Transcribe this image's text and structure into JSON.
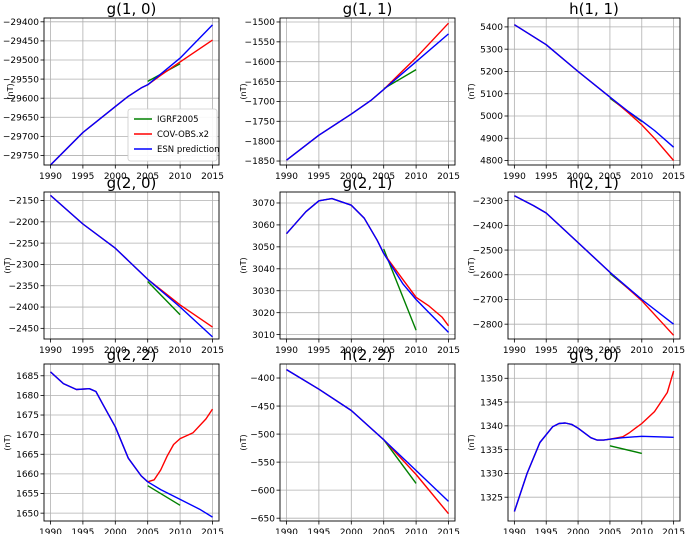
{
  "chart_data": [
    {
      "type": "line",
      "title": "g(1, 0)",
      "ylabel": "(nT)",
      "xlim": [
        1989,
        2016
      ],
      "ylim": [
        -29775,
        -29390
      ],
      "xticks": [
        1990,
        1995,
        2000,
        2005,
        2010,
        2015
      ],
      "yticks": [
        -29750,
        -29700,
        -29650,
        -29600,
        -29550,
        -29500,
        -29450,
        -29400
      ],
      "grid": true,
      "legend": "lower-right",
      "series": [
        {
          "name": "IGRF2005",
          "color": "#008000",
          "x": [
            2005,
            2010
          ],
          "y": [
            -29556,
            -29510
          ]
        },
        {
          "name": "COV-OBS.x2",
          "color": "#ff0000",
          "x": [
            1990,
            1995,
            2000,
            2002,
            2004,
            2005,
            2007,
            2010,
            2015
          ],
          "y": [
            -29775,
            -29690,
            -29622,
            -29595,
            -29573,
            -29565,
            -29540,
            -29505,
            -29448
          ]
        },
        {
          "name": "ESN prediction",
          "color": "#0000ff",
          "x": [
            1990,
            1995,
            2000,
            2002,
            2004,
            2005,
            2007,
            2010,
            2015
          ],
          "y": [
            -29775,
            -29690,
            -29622,
            -29595,
            -29573,
            -29565,
            -29537,
            -29495,
            -29408
          ]
        }
      ]
    },
    {
      "type": "line",
      "title": "g(1, 1)",
      "ylabel": "(nT)",
      "xlim": [
        1989,
        2016
      ],
      "ylim": [
        -1860,
        -1490
      ],
      "xticks": [
        1990,
        1995,
        2000,
        2005,
        2010,
        2015
      ],
      "yticks": [
        -1850,
        -1800,
        -1750,
        -1700,
        -1650,
        -1600,
        -1550,
        -1500
      ],
      "grid": true,
      "series": [
        {
          "name": "IGRF2005",
          "color": "#008000",
          "x": [
            2005,
            2010
          ],
          "y": [
            -1668,
            -1620
          ]
        },
        {
          "name": "COV-OBS.x2",
          "color": "#ff0000",
          "x": [
            1990,
            1995,
            2000,
            2003,
            2005,
            2008,
            2010,
            2015
          ],
          "y": [
            -1848,
            -1785,
            -1732,
            -1698,
            -1670,
            -1622,
            -1590,
            -1503
          ]
        },
        {
          "name": "ESN prediction",
          "color": "#0000ff",
          "x": [
            1990,
            1995,
            2000,
            2003,
            2005,
            2008,
            2010,
            2015
          ],
          "y": [
            -1848,
            -1785,
            -1732,
            -1698,
            -1670,
            -1628,
            -1600,
            -1530
          ]
        }
      ]
    },
    {
      "type": "line",
      "title": "h(1, 1)",
      "ylabel": "(nT)",
      "xlim": [
        1989,
        2016
      ],
      "ylim": [
        4780,
        5440
      ],
      "xticks": [
        1990,
        1995,
        2000,
        2005,
        2010,
        2015
      ],
      "yticks": [
        4800,
        4900,
        5000,
        5100,
        5200,
        5300,
        5400
      ],
      "grid": true,
      "series": [
        {
          "name": "IGRF2005",
          "color": "#008000",
          "x": [
            2005,
            2010
          ],
          "y": [
            5080,
            4975
          ]
        },
        {
          "name": "COV-OBS.x2",
          "color": "#ff0000",
          "x": [
            1990,
            1995,
            2000,
            2005,
            2008,
            2010,
            2012,
            2015
          ],
          "y": [
            5410,
            5320,
            5200,
            5085,
            5012,
            4960,
            4900,
            4800
          ]
        },
        {
          "name": "ESN prediction",
          "color": "#0000ff",
          "x": [
            1990,
            1995,
            2000,
            2005,
            2008,
            2010,
            2012,
            2015
          ],
          "y": [
            5410,
            5320,
            5200,
            5085,
            5018,
            4978,
            4935,
            4860
          ]
        }
      ]
    },
    {
      "type": "line",
      "title": "g(2, 0)",
      "ylabel": "(nT)",
      "xlim": [
        1989,
        2016
      ],
      "ylim": [
        -2475,
        -2130
      ],
      "xticks": [
        1990,
        1995,
        2000,
        2005,
        2010,
        2015
      ],
      "yticks": [
        -2150,
        -2200,
        -2250,
        -2300,
        -2350,
        -2400,
        -2450
      ],
      "grid": true,
      "series": [
        {
          "name": "IGRF2005",
          "color": "#008000",
          "x": [
            2005,
            2010
          ],
          "y": [
            -2340,
            -2418
          ]
        },
        {
          "name": "COV-OBS.x2",
          "color": "#ff0000",
          "x": [
            1990,
            1995,
            2000,
            2005,
            2010,
            2015
          ],
          "y": [
            -2138,
            -2205,
            -2262,
            -2335,
            -2395,
            -2447
          ]
        },
        {
          "name": "ESN prediction",
          "color": "#0000ff",
          "x": [
            1990,
            1995,
            2000,
            2005,
            2010,
            2015
          ],
          "y": [
            -2138,
            -2205,
            -2262,
            -2335,
            -2400,
            -2470
          ]
        }
      ]
    },
    {
      "type": "line",
      "title": "g(2, 1)",
      "ylabel": "(nT)",
      "xlim": [
        1989,
        2016
      ],
      "ylim": [
        3008,
        3075
      ],
      "xticks": [
        1990,
        1995,
        2000,
        2005,
        2010,
        2015
      ],
      "yticks": [
        3010,
        3020,
        3030,
        3040,
        3050,
        3060,
        3070
      ],
      "grid": true,
      "series": [
        {
          "name": "IGRF2005",
          "color": "#008000",
          "x": [
            2005,
            2010
          ],
          "y": [
            3049,
            3012
          ]
        },
        {
          "name": "COV-OBS.x2",
          "color": "#ff0000",
          "x": [
            1990,
            1993,
            1995,
            1997,
            2000,
            2002,
            2004,
            2005,
            2008,
            2010,
            2012,
            2014,
            2015
          ],
          "y": [
            3056,
            3066,
            3071,
            3072,
            3069,
            3063,
            3053,
            3047,
            3035,
            3027,
            3023,
            3018,
            3014
          ]
        },
        {
          "name": "ESN prediction",
          "color": "#0000ff",
          "x": [
            1990,
            1993,
            1995,
            1997,
            2000,
            2002,
            2004,
            2005,
            2008,
            2010,
            2012,
            2014,
            2015
          ],
          "y": [
            3056,
            3066,
            3071,
            3072,
            3069,
            3063,
            3053,
            3047,
            3033,
            3026,
            3020,
            3014,
            3011
          ]
        }
      ]
    },
    {
      "type": "line",
      "title": "h(2, 1)",
      "ylabel": "(nT)",
      "xlim": [
        1989,
        2016
      ],
      "ylim": [
        -2860,
        -2265
      ],
      "xticks": [
        1990,
        1995,
        2000,
        2005,
        2010,
        2015
      ],
      "yticks": [
        -2300,
        -2400,
        -2500,
        -2600,
        -2700,
        -2800
      ],
      "grid": true,
      "series": [
        {
          "name": "IGRF2005",
          "color": "#008000",
          "x": [
            2005,
            2010
          ],
          "y": [
            -2595,
            -2700
          ]
        },
        {
          "name": "COV-OBS.x2",
          "color": "#ff0000",
          "x": [
            1990,
            1993,
            1995,
            2000,
            2005,
            2010,
            2015
          ],
          "y": [
            -2280,
            -2320,
            -2350,
            -2470,
            -2590,
            -2705,
            -2845
          ]
        },
        {
          "name": "ESN prediction",
          "color": "#0000ff",
          "x": [
            1990,
            1993,
            1995,
            2000,
            2005,
            2010,
            2015
          ],
          "y": [
            -2280,
            -2320,
            -2350,
            -2470,
            -2590,
            -2700,
            -2800
          ]
        }
      ]
    },
    {
      "type": "line",
      "title": "g(2, 2)",
      "ylabel": "(nT)",
      "xlim": [
        1989,
        2016
      ],
      "ylim": [
        1648,
        1688
      ],
      "xticks": [
        1990,
        1995,
        2000,
        2005,
        2010,
        2015
      ],
      "yticks": [
        1650,
        1655,
        1660,
        1665,
        1670,
        1675,
        1680,
        1685
      ],
      "grid": true,
      "series": [
        {
          "name": "IGRF2005",
          "color": "#008000",
          "x": [
            2005,
            2010
          ],
          "y": [
            1657,
            1652
          ]
        },
        {
          "name": "COV-OBS.x2",
          "color": "#ff0000",
          "x": [
            1990,
            1992,
            1994,
            1996,
            1997,
            1998,
            2000,
            2002,
            2004,
            2005,
            2006,
            2007,
            2008,
            2009,
            2010,
            2012,
            2014,
            2015
          ],
          "y": [
            1686,
            1683,
            1681.5,
            1681.7,
            1681,
            1678,
            1672,
            1664,
            1659.5,
            1658,
            1658.5,
            1661,
            1664.5,
            1667.5,
            1669,
            1670.5,
            1674,
            1676.5
          ]
        },
        {
          "name": "ESN prediction",
          "color": "#0000ff",
          "x": [
            1990,
            1992,
            1994,
            1996,
            1997,
            1998,
            2000,
            2002,
            2004,
            2005,
            2007,
            2010,
            2013,
            2015
          ],
          "y": [
            1686,
            1683,
            1681.5,
            1681.7,
            1681,
            1678,
            1672,
            1664,
            1659.5,
            1658,
            1656,
            1653.5,
            1651,
            1649
          ]
        }
      ]
    },
    {
      "type": "line",
      "title": "h(2, 2)",
      "ylabel": "(nT)",
      "xlim": [
        1989,
        2016
      ],
      "ylim": [
        -655,
        -375
      ],
      "xticks": [
        1990,
        1995,
        2000,
        2005,
        2010,
        2015
      ],
      "yticks": [
        -400,
        -450,
        -500,
        -550,
        -600,
        -650
      ],
      "grid": true,
      "series": [
        {
          "name": "IGRF2005",
          "color": "#008000",
          "x": [
            2005,
            2010
          ],
          "y": [
            -510,
            -588
          ]
        },
        {
          "name": "COV-OBS.x2",
          "color": "#ff0000",
          "x": [
            1990,
            1995,
            2000,
            2005,
            2010,
            2015
          ],
          "y": [
            -385,
            -420,
            -458,
            -510,
            -572,
            -642
          ]
        },
        {
          "name": "ESN prediction",
          "color": "#0000ff",
          "x": [
            1990,
            1995,
            2000,
            2005,
            2010,
            2015
          ],
          "y": [
            -385,
            -420,
            -458,
            -510,
            -565,
            -620
          ]
        }
      ]
    },
    {
      "type": "line",
      "title": "g(3, 0)",
      "ylabel": "(nT)",
      "xlim": [
        1989,
        2016
      ],
      "ylim": [
        1320,
        1353
      ],
      "xticks": [
        1990,
        1995,
        2000,
        2005,
        2010,
        2015
      ],
      "yticks": [
        1325,
        1330,
        1335,
        1340,
        1345,
        1350
      ],
      "grid": true,
      "series": [
        {
          "name": "IGRF2005",
          "color": "#008000",
          "x": [
            2005,
            2010
          ],
          "y": [
            1335.8,
            1334.2
          ]
        },
        {
          "name": "COV-OBS.x2",
          "color": "#ff0000",
          "x": [
            1990,
            1992,
            1994,
            1996,
            1997,
            1998,
            1999,
            2000,
            2002,
            2003,
            2004,
            2005,
            2007,
            2008,
            2010,
            2012,
            2014,
            2015
          ],
          "y": [
            1322,
            1330,
            1336.5,
            1339.8,
            1340.5,
            1340.6,
            1340.3,
            1339.5,
            1337.5,
            1337,
            1337,
            1337.2,
            1337.7,
            1338.5,
            1340.5,
            1343,
            1347,
            1351.5
          ]
        },
        {
          "name": "ESN prediction",
          "color": "#0000ff",
          "x": [
            1990,
            1992,
            1994,
            1996,
            1997,
            1998,
            1999,
            2000,
            2002,
            2003,
            2004,
            2005,
            2007,
            2010,
            2015
          ],
          "y": [
            1322,
            1330,
            1336.5,
            1339.8,
            1340.5,
            1340.6,
            1340.3,
            1339.5,
            1337.5,
            1337,
            1337,
            1337.2,
            1337.5,
            1337.8,
            1337.6
          ]
        }
      ]
    }
  ]
}
